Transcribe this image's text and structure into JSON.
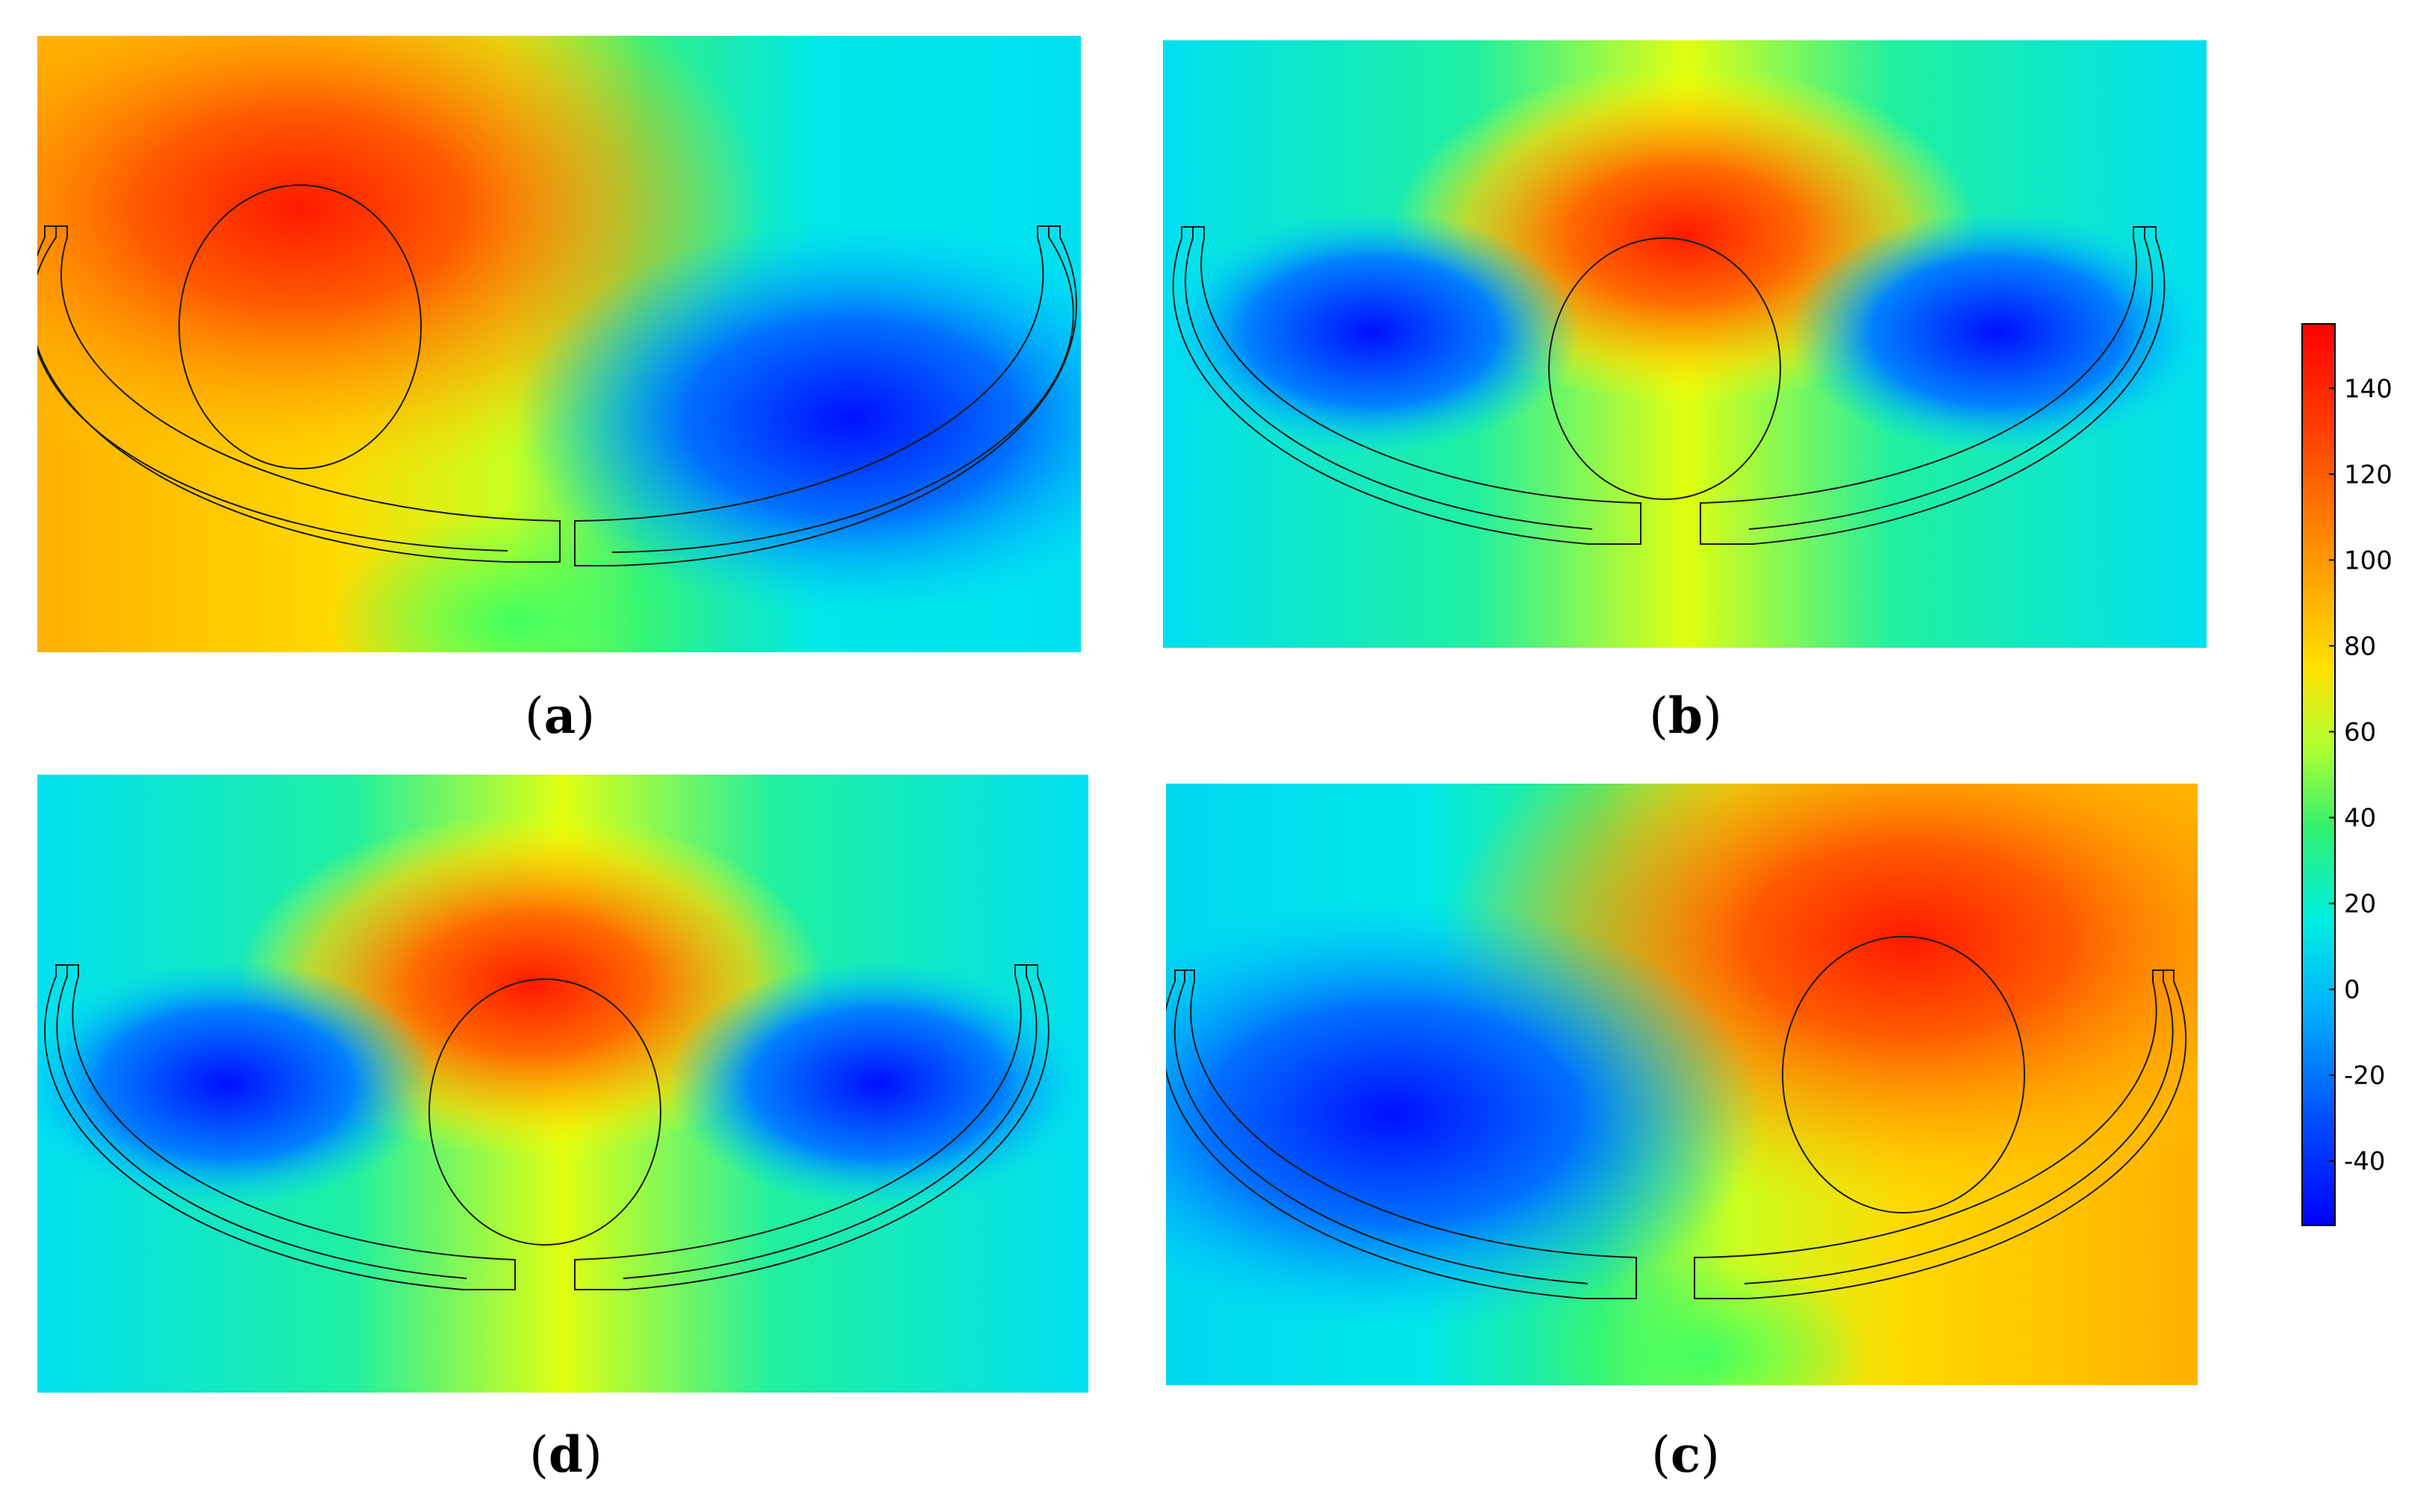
{
  "figure": {
    "panels": [
      {
        "id": "a",
        "label_open": "(",
        "letter": "a",
        "label_close": ")",
        "electrode_position": "upper-left",
        "colormap_position": "left"
      },
      {
        "id": "b",
        "label_open": "(",
        "letter": "b",
        "label_close": ")",
        "electrode_position": "center",
        "colormap_position": "center"
      },
      {
        "id": "d",
        "label_open": "(",
        "letter": "d",
        "label_close": ")",
        "electrode_position": "center",
        "colormap_position": "center"
      },
      {
        "id": "c",
        "label_open": "(",
        "letter": "c",
        "label_close": ")",
        "electrode_position": "upper-right",
        "colormap_position": "right"
      }
    ],
    "colorbar": {
      "min": -55,
      "max": 155,
      "ticks": [
        "140",
        "120",
        "100",
        "80",
        "60",
        "40",
        "20",
        "0",
        "-20",
        "-40"
      ],
      "tick_values": [
        140,
        120,
        100,
        80,
        60,
        40,
        20,
        0,
        -20,
        -40
      ],
      "colormap": "jet"
    },
    "colors": {
      "red": "#ff1a00",
      "orange": "#ff8a00",
      "yellow": "#ffff00",
      "green": "#2de070",
      "cyan": "#00f0f0",
      "blue": "#0010ff",
      "outline": "#1a1a1a"
    }
  }
}
